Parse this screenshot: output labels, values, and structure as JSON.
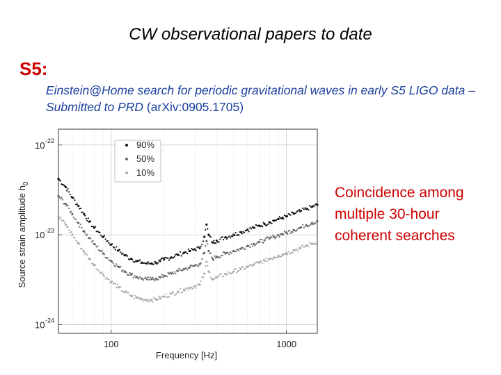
{
  "slide": {
    "title": "CW observational papers to date",
    "run_label": "S5:",
    "paper_italic": "Einstein@Home search for periodic gravitational waves in early S5 LIGO data – Submitted to PRD",
    "paper_ref": " (arXiv:0905.1705)",
    "note": "Coincidence among multiple 30-hour coherent searches"
  },
  "colors": {
    "title": "#000000",
    "run_label": "#cc0000",
    "paper": "#1a3f9e",
    "note": "#cc0000"
  },
  "chart_data": {
    "type": "scatter",
    "xscale": "log",
    "yscale": "log",
    "xlabel": "Frequency [Hz]",
    "ylabel": "Source strain amplitude h",
    "ylabel_sub": "0",
    "xlim": [
      50,
      1500
    ],
    "ylim": [
      8e-25,
      1.5e-22
    ],
    "x_ticks": [
      100,
      1000
    ],
    "x_tick_labels": [
      "100",
      "1000"
    ],
    "y_ticks": [
      1e-24,
      1e-23,
      1e-22
    ],
    "y_tick_labels": [
      {
        "base": "10",
        "exp": "-24"
      },
      {
        "base": "10",
        "exp": "-23"
      },
      {
        "base": "10",
        "exp": "-22"
      }
    ],
    "grid": true,
    "legend_position": "top-left",
    "series": [
      {
        "name": "90%",
        "color": "#111111",
        "points": [
          [
            50,
            4.2e-23
          ],
          [
            55,
            3.4e-23
          ],
          [
            60,
            2.6e-23
          ],
          [
            65,
            2.1e-23
          ],
          [
            70,
            1.7e-23
          ],
          [
            75,
            1.4e-23
          ],
          [
            80,
            1.2e-23
          ],
          [
            90,
            9.5e-24
          ],
          [
            100,
            7.8e-24
          ],
          [
            110,
            6.7e-24
          ],
          [
            120,
            5.9e-24
          ],
          [
            130,
            5.4e-24
          ],
          [
            140,
            5.1e-24
          ],
          [
            150,
            4.9e-24
          ],
          [
            160,
            4.8e-24
          ],
          [
            170,
            4.8e-24
          ],
          [
            180,
            4.9e-24
          ],
          [
            190,
            5.1e-24
          ],
          [
            200,
            5.3e-24
          ],
          [
            220,
            5.6e-24
          ],
          [
            240,
            6e-24
          ],
          [
            260,
            6.3e-24
          ],
          [
            280,
            6.6e-24
          ],
          [
            300,
            6.9e-24
          ],
          [
            320,
            7.1e-24
          ],
          [
            340,
            9.5e-24
          ],
          [
            350,
            1.3e-23
          ],
          [
            360,
            1e-23
          ],
          [
            380,
            8.2e-24
          ],
          [
            400,
            8.6e-24
          ],
          [
            450,
            9.4e-24
          ],
          [
            500,
            1e-23
          ],
          [
            550,
            1.07e-23
          ],
          [
            600,
            1.14e-23
          ],
          [
            650,
            1.2e-23
          ],
          [
            700,
            1.26e-23
          ],
          [
            750,
            1.32e-23
          ],
          [
            800,
            1.38e-23
          ],
          [
            850,
            1.44e-23
          ],
          [
            900,
            1.5e-23
          ],
          [
            950,
            1.55e-23
          ],
          [
            1000,
            1.6e-23
          ],
          [
            1100,
            1.72e-23
          ],
          [
            1200,
            1.83e-23
          ],
          [
            1300,
            1.94e-23
          ],
          [
            1400,
            2.05e-23
          ],
          [
            1500,
            2.15e-23
          ]
        ]
      },
      {
        "name": "50%",
        "color": "#666666",
        "points": [
          [
            50,
            2.7e-23
          ],
          [
            55,
            2.2e-23
          ],
          [
            60,
            1.7e-23
          ],
          [
            65,
            1.35e-23
          ],
          [
            70,
            1.1e-23
          ],
          [
            75,
            9.2e-24
          ],
          [
            80,
            7.9e-24
          ],
          [
            90,
            6.2e-24
          ],
          [
            100,
            5.1e-24
          ],
          [
            110,
            4.4e-24
          ],
          [
            120,
            3.9e-24
          ],
          [
            130,
            3.6e-24
          ],
          [
            140,
            3.4e-24
          ],
          [
            150,
            3.25e-24
          ],
          [
            160,
            3.2e-24
          ],
          [
            170,
            3.2e-24
          ],
          [
            180,
            3.25e-24
          ],
          [
            190,
            3.35e-24
          ],
          [
            200,
            3.5e-24
          ],
          [
            220,
            3.7e-24
          ],
          [
            240,
            3.95e-24
          ],
          [
            260,
            4.15e-24
          ],
          [
            280,
            4.35e-24
          ],
          [
            300,
            4.55e-24
          ],
          [
            320,
            4.7e-24
          ],
          [
            340,
            6.3e-24
          ],
          [
            350,
            8.5e-24
          ],
          [
            360,
            6.6e-24
          ],
          [
            380,
            5.4e-24
          ],
          [
            400,
            5.7e-24
          ],
          [
            450,
            6.2e-24
          ],
          [
            500,
            6.6e-24
          ],
          [
            550,
            7e-24
          ],
          [
            600,
            7.5e-24
          ],
          [
            650,
            7.9e-24
          ],
          [
            700,
            8.3e-24
          ],
          [
            750,
            8.7e-24
          ],
          [
            800,
            9.1e-24
          ],
          [
            850,
            9.5e-24
          ],
          [
            900,
            9.9e-24
          ],
          [
            950,
            1.02e-23
          ],
          [
            1000,
            1.06e-23
          ],
          [
            1100,
            1.13e-23
          ],
          [
            1200,
            1.2e-23
          ],
          [
            1300,
            1.28e-23
          ],
          [
            1400,
            1.35e-23
          ],
          [
            1500,
            1.42e-23
          ]
        ]
      },
      {
        "name": "10%",
        "color": "#aaaaaa",
        "points": [
          [
            50,
            1.6e-23
          ],
          [
            55,
            1.3e-23
          ],
          [
            60,
            1e-23
          ],
          [
            65,
            8e-24
          ],
          [
            70,
            6.5e-24
          ],
          [
            75,
            5.4e-24
          ],
          [
            80,
            4.6e-24
          ],
          [
            90,
            3.6e-24
          ],
          [
            100,
            3e-24
          ],
          [
            110,
            2.6e-24
          ],
          [
            120,
            2.3e-24
          ],
          [
            130,
            2.1e-24
          ],
          [
            140,
            2e-24
          ],
          [
            150,
            1.92e-24
          ],
          [
            160,
            1.88e-24
          ],
          [
            170,
            1.88e-24
          ],
          [
            180,
            1.92e-24
          ],
          [
            190,
            1.98e-24
          ],
          [
            200,
            2.05e-24
          ],
          [
            220,
            2.2e-24
          ],
          [
            240,
            2.33e-24
          ],
          [
            260,
            2.45e-24
          ],
          [
            280,
            2.57e-24
          ],
          [
            300,
            2.68e-24
          ],
          [
            320,
            2.78e-24
          ],
          [
            340,
            3.7e-24
          ],
          [
            350,
            5e-24
          ],
          [
            360,
            3.9e-24
          ],
          [
            380,
            3.2e-24
          ],
          [
            400,
            3.35e-24
          ],
          [
            450,
            3.65e-24
          ],
          [
            500,
            3.9e-24
          ],
          [
            550,
            4.15e-24
          ],
          [
            600,
            4.4e-24
          ],
          [
            650,
            4.65e-24
          ],
          [
            700,
            4.9e-24
          ],
          [
            750,
            5.15e-24
          ],
          [
            800,
            5.4e-24
          ],
          [
            850,
            5.6e-24
          ],
          [
            900,
            5.85e-24
          ],
          [
            950,
            6.05e-24
          ],
          [
            1000,
            6.25e-24
          ],
          [
            1100,
            6.7e-24
          ],
          [
            1200,
            7.1e-24
          ],
          [
            1300,
            7.55e-24
          ],
          [
            1400,
            7.95e-24
          ],
          [
            1500,
            8.4e-24
          ]
        ]
      }
    ]
  }
}
